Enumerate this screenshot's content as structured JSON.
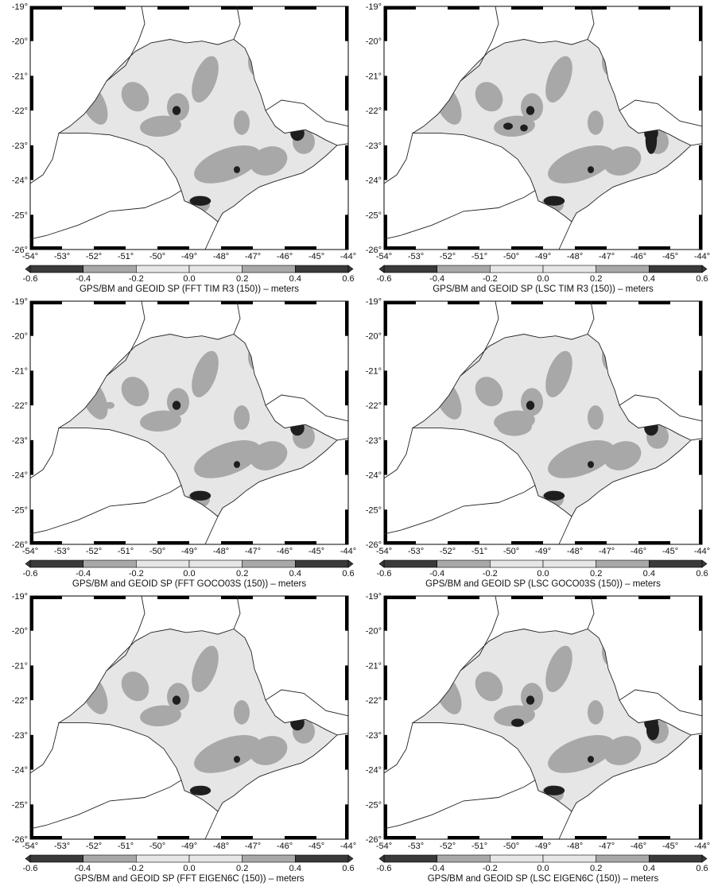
{
  "lon_labels": [
    "-54°",
    "-53°",
    "-52°",
    "-51°",
    "-50°",
    "-49°",
    "-48°",
    "-47°",
    "-46°",
    "-45°",
    "-44°"
  ],
  "lat_labels": [
    "-19°",
    "-20°",
    "-21°",
    "-22°",
    "-23°",
    "-24°",
    "-25°",
    "-26°"
  ],
  "scale": {
    "ticks": [
      "-0.6",
      "-0.4",
      "-0.2",
      "0.0",
      "0.2",
      "0.4",
      "0.6"
    ],
    "class_colors": [
      "#3a3a3a",
      "#a8a8a8",
      "#e6e6e6",
      "#e6e6e6",
      "#a8a8a8",
      "#3a3a3a"
    ],
    "unit": "meters"
  },
  "panels": [
    {
      "id": "fft-tim-r3",
      "caption": "GPS/BM and GEOID SP (FFT TIM R3 (150)) – meters"
    },
    {
      "id": "lsc-tim-r3",
      "caption": "GPS/BM and GEOID SP (LSC TIM R3 (150)) – meters"
    },
    {
      "id": "fft-goco03s",
      "caption": "GPS/BM and GEOID SP (FFT GOCO03S (150)) – meters"
    },
    {
      "id": "lsc-goco03s",
      "caption": "GPS/BM and GEOID SP (LSC GOCO03S (150)) – meters"
    },
    {
      "id": "fft-eigen6c",
      "caption": "GPS/BM and GEOID SP (FFT EIGEN6C (150)) – meters"
    },
    {
      "id": "lsc-eigen6c",
      "caption": "GPS/BM and GEOID SP (LSC EIGEN6C (150)) – meters"
    }
  ],
  "colors": {
    "land": "#e6e6e6",
    "mid": "#a8a8a8",
    "dark": "#1e1e1e",
    "frame": "#000000"
  }
}
